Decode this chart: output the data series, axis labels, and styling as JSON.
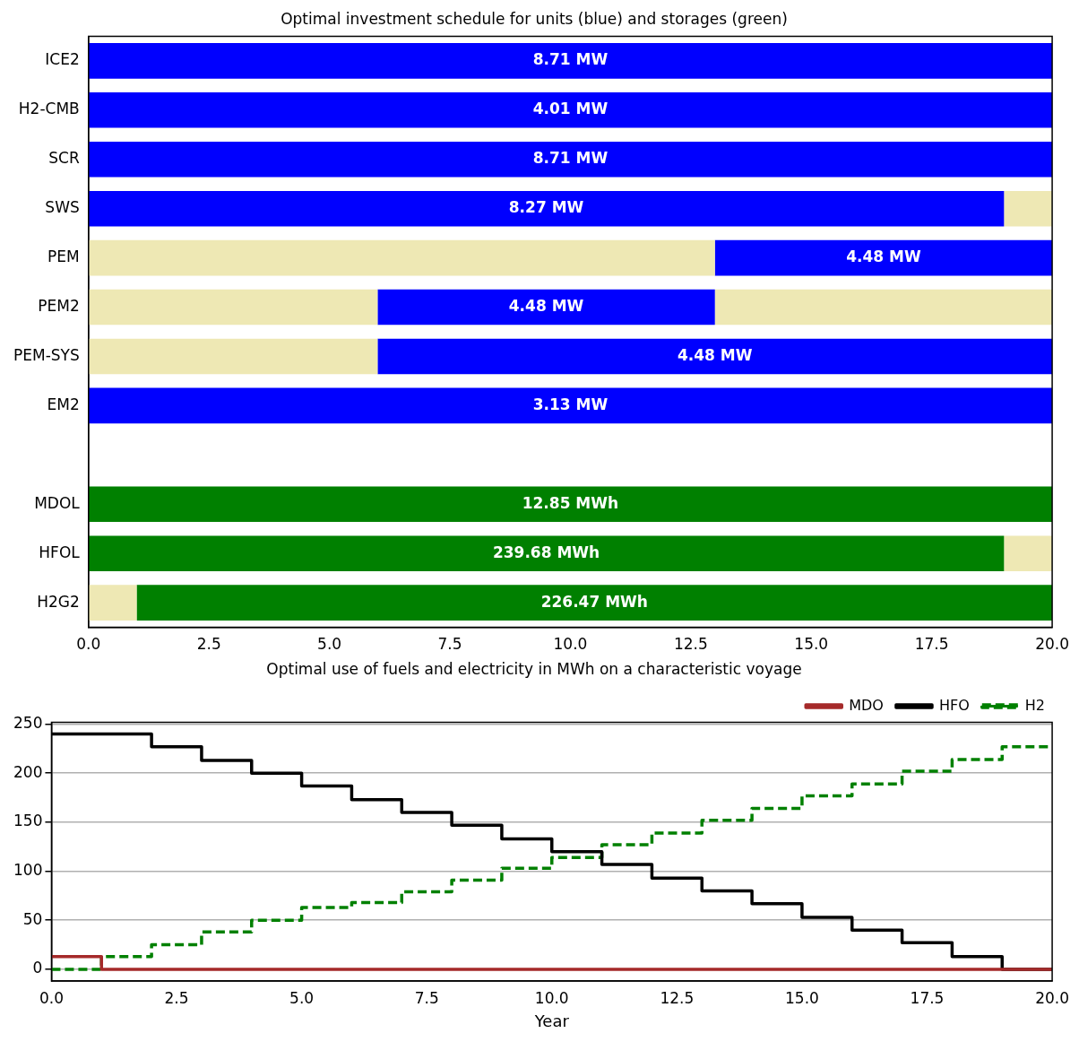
{
  "chart_data": [
    {
      "type": "bar",
      "orientation": "horizontal",
      "stacked": true,
      "title": "Optimal investment schedule for units (blue) and storages (green)",
      "categories": [
        "ICE2",
        "H2-CMB",
        "SCR",
        "SWS",
        "PEM",
        "PEM2",
        "PEM-SYS",
        "EM2",
        null,
        "MDOL",
        "HFOL",
        "H2G2"
      ],
      "series": [
        {
          "color": "#eee8b4",
          "values": [
            0,
            0,
            0,
            0,
            13,
            6,
            6,
            0,
            null,
            0,
            0,
            1
          ]
        },
        {
          "colors": [
            "#0000ff",
            "#0000ff",
            "#0000ff",
            "#0000ff",
            "#0000ff",
            "#0000ff",
            "#0000ff",
            "#0000ff",
            null,
            "#008000",
            "#008000",
            "#008000"
          ],
          "values": [
            20,
            20,
            20,
            19,
            7,
            7,
            14,
            20,
            null,
            20,
            19,
            19
          ]
        },
        {
          "color": "#eee8b4",
          "values": [
            0,
            0,
            0,
            1,
            0,
            7,
            0,
            0,
            null,
            0,
            1,
            0
          ]
        }
      ],
      "annotations": [
        {
          "text": "8.71 MW",
          "x": 10,
          "y": "ICE2"
        },
        {
          "text": "4.01 MW",
          "x": 10,
          "y": "H2-CMB"
        },
        {
          "text": "8.71 MW",
          "x": 10,
          "y": "SCR"
        },
        {
          "text": "8.27 MW",
          "x": 9.5,
          "y": "SWS"
        },
        {
          "text": "4.48 MW",
          "x": 16.5,
          "y": "PEM"
        },
        {
          "text": "4.48 MW",
          "x": 9.5,
          "y": "PEM2"
        },
        {
          "text": "4.48 MW",
          "x": 13,
          "y": "PEM-SYS"
        },
        {
          "text": "3.13 MW",
          "x": 10,
          "y": "EM2"
        },
        {
          "text": "12.85 MWh",
          "x": 10,
          "y": "MDOL"
        },
        {
          "text": "239.68 MWh",
          "x": 9.5,
          "y": "HFOL"
        },
        {
          "text": "226.47 MWh",
          "x": 10.5,
          "y": "H2G2"
        }
      ],
      "xlim": [
        0,
        20
      ],
      "xticks": [
        {
          "value": 0,
          "label": "0.0"
        },
        2.5,
        {
          "value": 5,
          "label": "5.0"
        },
        7.5,
        {
          "value": 10,
          "label": "10.0"
        },
        12.5,
        {
          "value": 15,
          "label": "15.0"
        },
        17.5,
        {
          "value": 20,
          "label": "20.0"
        }
      ],
      "grid": false,
      "legend": false
    },
    {
      "type": "step",
      "title": "Optimal use of fuels and electricity in MWh on a characteristic voyage",
      "xlabel": "Year",
      "x": [
        0,
        1,
        2,
        3,
        4,
        5,
        6,
        7,
        8,
        9,
        10,
        11,
        12,
        13,
        14,
        15,
        16,
        17,
        18,
        19,
        20
      ],
      "series": [
        {
          "name": "MDO",
          "color": "#a52a2a",
          "line_style": "solid",
          "values": [
            13,
            0,
            0,
            0,
            0,
            0,
            0,
            0,
            0,
            0,
            0,
            0,
            0,
            0,
            0,
            0,
            0,
            0,
            0,
            0,
            0
          ]
        },
        {
          "name": "HFO",
          "color": "#000000",
          "line_style": "solid",
          "values": [
            240,
            240,
            227,
            213,
            200,
            187,
            173,
            160,
            147,
            133,
            120,
            107,
            93,
            80,
            67,
            53,
            40,
            27,
            13,
            0,
            0
          ]
        },
        {
          "name": "H2",
          "color": "#008000",
          "line_style": "dashed",
          "values": [
            0,
            13,
            25,
            38,
            50,
            63,
            68,
            79,
            91,
            103,
            114,
            127,
            139,
            152,
            164,
            177,
            189,
            202,
            214,
            227,
            227
          ]
        }
      ],
      "xlim": [
        0,
        20
      ],
      "xticks": [
        {
          "value": 0,
          "label": "0.0"
        },
        2.5,
        {
          "value": 5,
          "label": "5.0"
        },
        7.5,
        {
          "value": 10,
          "label": "10.0"
        },
        12.5,
        {
          "value": 15,
          "label": "15.0"
        },
        17.5,
        {
          "value": 20,
          "label": "20.0"
        }
      ],
      "ylim": [
        -12,
        252
      ],
      "yticks": [
        0,
        50,
        100,
        150,
        200,
        250
      ],
      "grid": "y",
      "legend": "top right"
    }
  ]
}
